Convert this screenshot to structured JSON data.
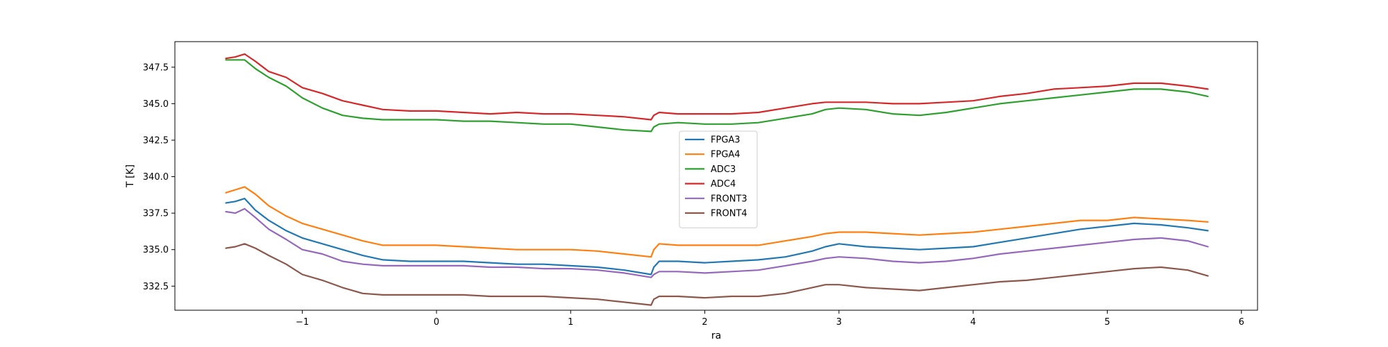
{
  "chart_data": {
    "type": "line",
    "title": "",
    "xlabel": "ra",
    "ylabel": "T [K]",
    "xlim": [
      -1.95,
      6.12
    ],
    "ylim": [
      330.85,
      349.25
    ],
    "xticks": [
      -1,
      0,
      1,
      2,
      3,
      4,
      5,
      6
    ],
    "xtick_labels": [
      "−1",
      "0",
      "1",
      "2",
      "3",
      "4",
      "5",
      "6"
    ],
    "yticks": [
      332.5,
      335.0,
      337.5,
      340.0,
      342.5,
      345.0,
      347.5
    ],
    "ytick_labels": [
      "332.5",
      "335.0",
      "337.5",
      "340.0",
      "342.5",
      "345.0",
      "347.5"
    ],
    "legend_position": "center",
    "grid": false,
    "x": [
      -1.57,
      -1.5,
      -1.43,
      -1.35,
      -1.25,
      -1.12,
      -1.0,
      -0.85,
      -0.7,
      -0.55,
      -0.4,
      -0.2,
      0.0,
      0.2,
      0.4,
      0.6,
      0.8,
      1.0,
      1.2,
      1.4,
      1.6,
      1.62,
      1.66,
      1.8,
      2.0,
      2.2,
      2.4,
      2.6,
      2.8,
      2.9,
      3.0,
      3.2,
      3.4,
      3.6,
      3.8,
      4.0,
      4.2,
      4.4,
      4.6,
      4.8,
      5.0,
      5.2,
      5.4,
      5.6,
      5.75
    ],
    "series": [
      {
        "name": "FPGA3",
        "color": "#1f77b4",
        "values": [
          338.2,
          338.3,
          338.5,
          337.7,
          337.0,
          336.3,
          335.8,
          335.4,
          335.0,
          334.6,
          334.3,
          334.2,
          334.2,
          334.2,
          334.1,
          334.0,
          334.0,
          333.9,
          333.8,
          333.6,
          333.3,
          333.8,
          334.2,
          334.2,
          334.1,
          334.2,
          334.3,
          334.5,
          334.9,
          335.2,
          335.4,
          335.2,
          335.1,
          335.0,
          335.1,
          335.2,
          335.5,
          335.8,
          336.1,
          336.4,
          336.6,
          336.8,
          336.7,
          336.5,
          336.3
        ]
      },
      {
        "name": "FPGA4",
        "color": "#ff7f0e",
        "values": [
          338.9,
          339.1,
          339.3,
          338.8,
          338.0,
          337.3,
          336.8,
          336.4,
          336.0,
          335.6,
          335.3,
          335.3,
          335.3,
          335.2,
          335.1,
          335.0,
          335.0,
          335.0,
          334.9,
          334.7,
          334.5,
          335.0,
          335.4,
          335.3,
          335.3,
          335.3,
          335.3,
          335.6,
          335.9,
          336.1,
          336.2,
          336.2,
          336.1,
          336.0,
          336.1,
          336.2,
          336.4,
          336.6,
          336.8,
          337.0,
          337.0,
          337.2,
          337.1,
          337.0,
          336.9
        ]
      },
      {
        "name": "ADC3",
        "color": "#2ca02c",
        "values": [
          348.0,
          348.0,
          348.0,
          347.4,
          346.8,
          346.2,
          345.4,
          344.7,
          344.2,
          344.0,
          343.9,
          343.9,
          343.9,
          343.8,
          343.8,
          343.7,
          343.6,
          343.6,
          343.4,
          343.2,
          343.1,
          343.4,
          343.6,
          343.7,
          343.6,
          343.6,
          343.7,
          344.0,
          344.3,
          344.6,
          344.7,
          344.6,
          344.3,
          344.2,
          344.4,
          344.7,
          345.0,
          345.2,
          345.4,
          345.6,
          345.8,
          346.0,
          346.0,
          345.8,
          345.5
        ]
      },
      {
        "name": "ADC4",
        "color": "#d62728",
        "values": [
          348.1,
          348.2,
          348.4,
          347.9,
          347.2,
          346.8,
          346.1,
          345.7,
          345.2,
          344.9,
          344.6,
          344.5,
          344.5,
          344.4,
          344.3,
          344.4,
          344.3,
          344.3,
          344.2,
          344.1,
          343.9,
          344.2,
          344.4,
          344.3,
          344.3,
          344.3,
          344.4,
          344.7,
          345.0,
          345.1,
          345.1,
          345.1,
          345.0,
          345.0,
          345.1,
          345.2,
          345.5,
          345.7,
          346.0,
          346.1,
          346.2,
          346.4,
          346.4,
          346.2,
          346.0
        ]
      },
      {
        "name": "FRONT3",
        "color": "#9467bd",
        "values": [
          337.6,
          337.5,
          337.8,
          337.2,
          336.4,
          335.7,
          335.0,
          334.7,
          334.2,
          334.0,
          333.9,
          333.9,
          333.9,
          333.9,
          333.8,
          333.8,
          333.7,
          333.7,
          333.6,
          333.4,
          333.1,
          333.3,
          333.5,
          333.5,
          333.4,
          333.5,
          333.6,
          333.9,
          334.2,
          334.4,
          334.5,
          334.4,
          334.2,
          334.1,
          334.2,
          334.4,
          334.7,
          334.9,
          335.1,
          335.3,
          335.5,
          335.7,
          335.8,
          335.6,
          335.2
        ]
      },
      {
        "name": "FRONT4",
        "color": "#8c564b",
        "values": [
          335.1,
          335.2,
          335.4,
          335.1,
          334.6,
          334.0,
          333.3,
          332.9,
          332.4,
          332.0,
          331.9,
          331.9,
          331.9,
          331.9,
          331.8,
          331.8,
          331.8,
          331.7,
          331.6,
          331.4,
          331.2,
          331.6,
          331.8,
          331.8,
          331.7,
          331.8,
          331.8,
          332.0,
          332.4,
          332.6,
          332.6,
          332.4,
          332.3,
          332.2,
          332.4,
          332.6,
          332.8,
          332.9,
          333.1,
          333.3,
          333.5,
          333.7,
          333.8,
          333.6,
          333.2
        ]
      }
    ]
  }
}
